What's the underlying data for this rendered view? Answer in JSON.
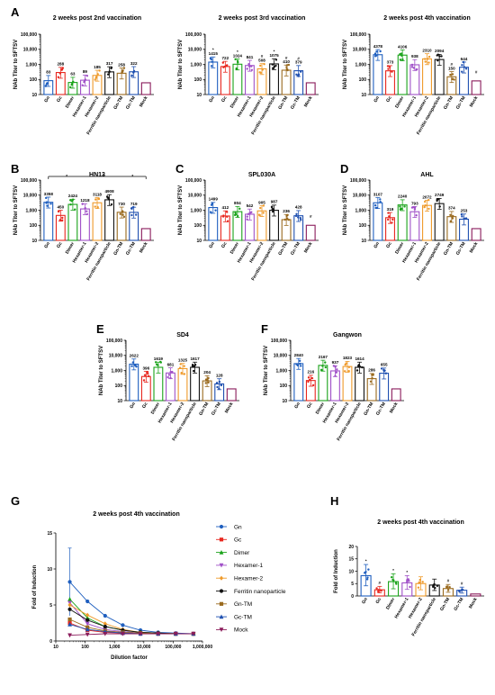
{
  "figure": {
    "panel_letters": [
      "A",
      "B",
      "C",
      "D",
      "E",
      "F",
      "G",
      "H"
    ]
  },
  "colors": [
    "#1f5fbf",
    "#e8271f",
    "#1aa31a",
    "#a050c8",
    "#ef9a2a",
    "#111111",
    "#9a6a1e",
    "#1f50b0",
    "#8a1a5a"
  ],
  "chart_data": [
    {
      "id": "A1",
      "panel": "A",
      "type": "bar",
      "title": "2 weeks post 2nd vaccination",
      "ylabel": "NAb Titer to SFTSV",
      "xlabel": "",
      "yscale": "log",
      "ylim": [
        10,
        100000
      ],
      "yticks": [
        "10",
        "100",
        "1,000",
        "10,000",
        "100,000"
      ],
      "categories": [
        "Gn",
        "Gc",
        "Dimer",
        "Hexamer-1",
        "Hexamer-2",
        "Ferritin nanoparticle",
        "Gn-TM",
        "Gc-TM",
        "Mock"
      ],
      "values": [
        83,
        288,
        63,
        89,
        185,
        317,
        258,
        322,
        60
      ],
      "labels": [
        "83",
        "288",
        "63",
        "89",
        "185",
        "317",
        "258",
        "322",
        ""
      ],
      "marks": [
        "",
        "",
        "",
        "",
        "",
        "",
        "",
        "",
        ""
      ]
    },
    {
      "id": "A2",
      "panel": "",
      "type": "bar",
      "title": "2 weeks post 3rd vaccination",
      "ylabel": "NAb Titer to SFTSV",
      "xlabel": "",
      "yscale": "log",
      "ylim": [
        10,
        100000
      ],
      "yticks": [
        "10",
        "100",
        "1,000",
        "10,000",
        "100,000"
      ],
      "categories": [
        "Gn",
        "Gc",
        "Dimer",
        "Hexamer-1",
        "Hexamer-2",
        "Ferritin nanoparticle",
        "Gn-TM",
        "Gc-TM",
        "Mock"
      ],
      "values": [
        1415,
        722,
        1024,
        841,
        508,
        1075,
        410,
        379,
        60
      ],
      "labels": [
        "1415",
        "722",
        "1024",
        "841",
        "508",
        "1075",
        "410",
        "379",
        ""
      ],
      "marks": [
        "*",
        "",
        "*",
        "",
        "#",
        "*",
        "#",
        "#",
        ""
      ]
    },
    {
      "id": "A3",
      "panel": "",
      "type": "bar",
      "title": "2 weeks post 4th vaccination",
      "ylabel": "NAb Titer to SFTSV",
      "xlabel": "",
      "yscale": "log",
      "ylim": [
        10,
        100000
      ],
      "yticks": [
        "10",
        "100",
        "1,000",
        "10,000",
        "100,000"
      ],
      "categories": [
        "Gn",
        "Gc",
        "Dimer",
        "Hexamer-1",
        "Hexamer-2",
        "Ferritin nanoparticle",
        "Gn-TM",
        "Gc-TM",
        "Mock"
      ],
      "values": [
        4378,
        373,
        4106,
        938,
        2310,
        2094,
        150,
        644,
        80
      ],
      "labels": [
        "4378",
        "373",
        "4106",
        "938",
        "2310",
        "2094",
        "150",
        "644",
        ""
      ],
      "marks": [
        "",
        "",
        "",
        "",
        "",
        "",
        "#",
        "",
        "#"
      ]
    },
    {
      "id": "B",
      "panel": "B",
      "type": "bar",
      "title": "HN13",
      "ylabel": "NAb Titer to SFTSV",
      "xlabel": "",
      "yscale": "log",
      "ylim": [
        10,
        100000
      ],
      "yticks": [
        "10",
        "100",
        "1,000",
        "10,000",
        "100,000"
      ],
      "categories": [
        "Gn",
        "Gc",
        "Dimer",
        "Hexamer-1",
        "Hexamer-2",
        "Ferritin nanoparticle",
        "Gn-TM",
        "Gc-TM",
        "Mock"
      ],
      "values": [
        3358,
        450,
        2424,
        1218,
        3118,
        4908,
        730,
        719,
        60
      ],
      "labels": [
        "3358",
        "450",
        "2424",
        "1218",
        "3118",
        "4908",
        "730",
        "719",
        ""
      ],
      "marks": [
        "",
        "",
        "",
        "",
        "",
        "",
        "",
        "",
        ""
      ],
      "bracket_marks": [
        "*",
        "*",
        "*"
      ]
    },
    {
      "id": "C",
      "panel": "C",
      "type": "bar",
      "title": "SPL030A",
      "ylabel": "NAb Titer to SFTSV",
      "xlabel": "",
      "yscale": "log",
      "ylim": [
        10,
        100000
      ],
      "yticks": [
        "10",
        "100",
        "1,000",
        "10,000",
        "100,000"
      ],
      "categories": [
        "Gn",
        "Gc",
        "Dimer",
        "Hexamer-1",
        "Hexamer-2",
        "Ferritin nanoparticle",
        "Gn-TM",
        "Gc-TM",
        "Mock"
      ],
      "values": [
        1499,
        412,
        804,
        542,
        905,
        987,
        236,
        428,
        100
      ],
      "labels": [
        "1499",
        "412",
        "804",
        "542",
        "905",
        "987",
        "236",
        "428",
        ""
      ],
      "marks": [
        "",
        "",
        "",
        "",
        "",
        "",
        "",
        "",
        "#"
      ]
    },
    {
      "id": "D",
      "panel": "D",
      "type": "bar",
      "title": "AHL",
      "ylabel": "NAb Titer to SFTSV",
      "xlabel": "",
      "yscale": "log",
      "ylim": [
        10,
        100000
      ],
      "yticks": [
        "10",
        "100",
        "1,000",
        "10,000",
        "100,000"
      ],
      "categories": [
        "Gn",
        "Gc",
        "Dimer",
        "Hexamer-1",
        "Hexamer-2",
        "Ferritin nanoparticle",
        "Gn-TM",
        "Gc-TM",
        "Mock"
      ],
      "values": [
        3107,
        319,
        2240,
        793,
        2072,
        2749,
        374,
        253,
        60
      ],
      "labels": [
        "3107",
        "319",
        "2240",
        "793",
        "2072",
        "2749",
        "374",
        "253",
        ""
      ],
      "marks": [
        "",
        "",
        "",
        "",
        "",
        "",
        "",
        "",
        ""
      ]
    },
    {
      "id": "E",
      "panel": "E",
      "type": "bar",
      "title": "SD4",
      "ylabel": "NAb Titer to SFTSV",
      "xlabel": "",
      "yscale": "log",
      "ylim": [
        10,
        100000
      ],
      "yticks": [
        "10",
        "100",
        "1,000",
        "10,000",
        "100,000"
      ],
      "categories": [
        "Gn",
        "Gc",
        "Dimer",
        "Hexamer-1",
        "Hexamer-2",
        "Ferritin nanoparticle",
        "Gn-TM",
        "Gc-TM",
        "Mock"
      ],
      "values": [
        2622,
        396,
        1619,
        681,
        1325,
        1617,
        204,
        128,
        60
      ],
      "labels": [
        "2622",
        "396",
        "1619",
        "681",
        "1325",
        "1617",
        "204",
        "128",
        ""
      ],
      "marks": [
        "",
        "",
        "",
        "",
        "",
        "",
        "",
        "",
        ""
      ]
    },
    {
      "id": "F",
      "panel": "F",
      "type": "bar",
      "title": "Gangwon",
      "ylabel": "NAb Titer to SFTSV",
      "xlabel": "",
      "yscale": "log",
      "ylim": [
        10,
        100000
      ],
      "yticks": [
        "10",
        "100",
        "1,000",
        "10,000",
        "100,000"
      ],
      "categories": [
        "Gn",
        "Gc",
        "Dimer",
        "Hexamer-1",
        "Hexamer-2",
        "Ferritin nanoparticle",
        "Gn-TM",
        "Gc-TM",
        "Mock"
      ],
      "values": [
        2840,
        216,
        2167,
        937,
        1823,
        1614,
        286,
        655,
        60
      ],
      "labels": [
        "2840",
        "216",
        "2167",
        "937",
        "1823",
        "1614",
        "286",
        "655",
        ""
      ],
      "marks": [
        "",
        "",
        "",
        "",
        "",
        "",
        "",
        "",
        ""
      ]
    },
    {
      "id": "G",
      "panel": "G",
      "type": "line",
      "title": "2 weeks post 4th vaccination",
      "xlabel": "Dilution factor",
      "ylabel": "Fold of Induction",
      "xscale": "log",
      "xlim": [
        10,
        1000000
      ],
      "ylim": [
        0,
        15
      ],
      "xticks": [
        10,
        100,
        1000,
        10000,
        100000,
        1000000
      ],
      "xtick_labels": [
        "10",
        "100",
        "1,000",
        "10,000",
        "100,000",
        "1,000,000"
      ],
      "yticks": [
        0,
        5,
        10,
        15
      ],
      "x": [
        30,
        120,
        480,
        1920,
        7680,
        30720,
        122880,
        491520
      ],
      "series": [
        {
          "name": "Gn",
          "values": [
            8.2,
            5.5,
            3.5,
            2.2,
            1.5,
            1.2,
            1.1,
            1.0
          ],
          "marker": "circle"
        },
        {
          "name": "Gc",
          "values": [
            2.5,
            1.5,
            1.2,
            1.1,
            1.0,
            1.0,
            1.0,
            1.0
          ],
          "marker": "square"
        },
        {
          "name": "Dimer",
          "values": [
            5.8,
            3.2,
            2.0,
            1.5,
            1.2,
            1.1,
            1.0,
            1.0
          ],
          "marker": "tri-up"
        },
        {
          "name": "Hexamer-1",
          "values": [
            5.3,
            2.4,
            1.6,
            1.3,
            1.1,
            1.0,
            1.0,
            1.0
          ],
          "marker": "tri-down"
        },
        {
          "name": "Hexamer-2",
          "values": [
            5.0,
            3.6,
            2.4,
            1.6,
            1.2,
            1.1,
            1.0,
            1.0
          ],
          "marker": "diamond"
        },
        {
          "name": "Ferritin nanoparticle",
          "values": [
            4.4,
            2.9,
            2.0,
            1.5,
            1.2,
            1.1,
            1.0,
            1.0
          ],
          "marker": "circle"
        },
        {
          "name": "Gn-TM",
          "values": [
            3.0,
            1.9,
            1.4,
            1.2,
            1.1,
            1.0,
            1.0,
            1.0
          ],
          "marker": "square"
        },
        {
          "name": "Gc-TM",
          "values": [
            2.3,
            1.6,
            1.3,
            1.1,
            1.0,
            1.0,
            1.0,
            1.0
          ],
          "marker": "tri-up"
        },
        {
          "name": "Mock",
          "values": [
            0.8,
            0.9,
            1.0,
            1.0,
            1.0,
            1.0,
            1.0,
            1.0
          ],
          "marker": "tri-down"
        }
      ],
      "error": 4.7,
      "legend": "right"
    },
    {
      "id": "H",
      "panel": "H",
      "type": "bar",
      "title": "2 weeks post 4th vaccination",
      "ylabel": "Fold of Induction",
      "xlabel": "",
      "yscale": "linear",
      "ylim": [
        0,
        20
      ],
      "yticks": [
        "0",
        "5",
        "10",
        "15",
        "20"
      ],
      "categories": [
        "Gn",
        "Gc",
        "Dimer",
        "Hexamer-1",
        "Hexamer-2",
        "Ferritin nanoparticle",
        "Gn-TM",
        "Gc-TM",
        "Mock"
      ],
      "values": [
        8.2,
        2.5,
        5.8,
        5.3,
        5.0,
        4.4,
        3.0,
        2.3,
        0.8
      ],
      "labels": [
        "",
        "",
        "",
        "",
        "",
        "",
        "",
        "",
        ""
      ],
      "marks": [
        "*",
        "#",
        "*",
        "*",
        "",
        "",
        "#",
        "#",
        ""
      ]
    }
  ]
}
